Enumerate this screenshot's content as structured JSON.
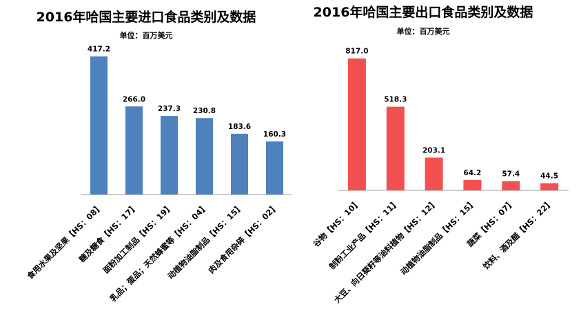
{
  "chart_data": [
    {
      "type": "bar",
      "title": "2016年哈国主要进口食品类别及数据",
      "unit": "单位：百万美元",
      "categories": [
        "食用水果及坚果【HS：08】",
        "糖及糖食【HS：17】",
        "面粉加工制品【HS：19】",
        "乳品；蛋品；天然蜂蜜等【HS：04】",
        "动植物油脂制品【HS：15】",
        "肉及食用杂碎【HS：02】"
      ],
      "values": [
        417.2,
        266.0,
        237.3,
        230.8,
        183.6,
        160.3
      ],
      "value_labels": [
        "417.2",
        "266.0",
        "237.3",
        "230.8",
        "183.6",
        "160.3"
      ],
      "color": "#4f81bd",
      "ylim": [
        0,
        450
      ]
    },
    {
      "type": "bar",
      "title": "2016年哈国主要出口食品类别及数据",
      "unit": "单位：百万美元",
      "categories": [
        "谷物【HS：10】",
        "制粉工业产品【HS：11】",
        "大豆、向日葵籽等油料植物【HS：12】",
        "动植物油脂制品【HS：15】",
        "蔬菜【HS：07】",
        "饮料、酒及醋【HS：22】"
      ],
      "values": [
        817.0,
        518.3,
        203.1,
        64.2,
        57.4,
        44.5
      ],
      "value_labels": [
        "817.0",
        "518.3",
        "203.1",
        "64.2",
        "57.4",
        "44.5"
      ],
      "color": "#f25050",
      "ylim": [
        0,
        880
      ]
    }
  ]
}
